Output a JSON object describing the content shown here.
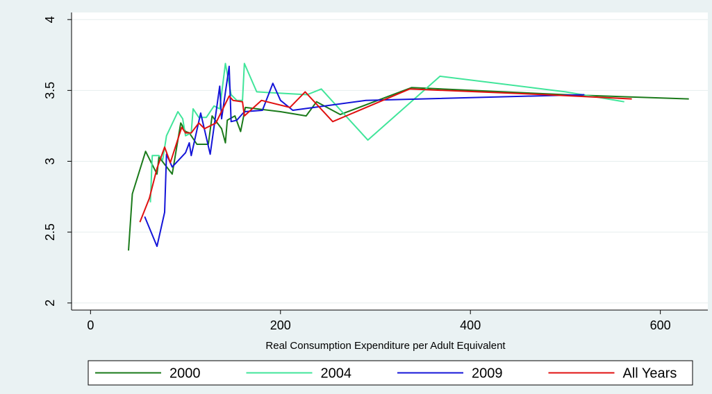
{
  "chart_data": {
    "type": "line",
    "title": "",
    "xlabel": "Real Consumption Expenditure per Adult Equivalent",
    "ylabel": "",
    "xlim": [
      -20,
      650
    ],
    "ylim": [
      1.95,
      4.05
    ],
    "x_ticks": [
      0,
      200,
      400,
      600
    ],
    "x_tick_labels": [
      "0",
      "200",
      "400",
      "600"
    ],
    "y_ticks": [
      2,
      2.5,
      3,
      3.5,
      4
    ],
    "y_tick_labels": [
      "2",
      "2.5",
      "3",
      "3.5",
      "4"
    ],
    "grid": "horizontal",
    "legend_position": "bottom",
    "series": [
      {
        "name": "2000",
        "color": "#1a7a1a",
        "points": [
          [
            40,
            2.37
          ],
          [
            44,
            2.77
          ],
          [
            58,
            3.07
          ],
          [
            70,
            2.91
          ],
          [
            72,
            3.03
          ],
          [
            86,
            2.91
          ],
          [
            95,
            3.27
          ],
          [
            100,
            3.21
          ],
          [
            104,
            3.2
          ],
          [
            112,
            3.12
          ],
          [
            124,
            3.12
          ],
          [
            128,
            3.32
          ],
          [
            138,
            3.23
          ],
          [
            142,
            3.13
          ],
          [
            144,
            3.29
          ],
          [
            152,
            3.32
          ],
          [
            158,
            3.21
          ],
          [
            163,
            3.38
          ],
          [
            175,
            3.37
          ],
          [
            200,
            3.35
          ],
          [
            227,
            3.32
          ],
          [
            238,
            3.42
          ],
          [
            263,
            3.33
          ],
          [
            338,
            3.52
          ],
          [
            500,
            3.47
          ],
          [
            630,
            3.44
          ]
        ]
      },
      {
        "name": "2004",
        "color": "#40e59a",
        "points": [
          [
            63,
            2.71
          ],
          [
            65,
            3.04
          ],
          [
            72,
            3.04
          ],
          [
            76,
            3.01
          ],
          [
            80,
            3.18
          ],
          [
            92,
            3.35
          ],
          [
            97,
            3.3
          ],
          [
            100,
            3.18
          ],
          [
            106,
            3.2
          ],
          [
            108,
            3.37
          ],
          [
            114,
            3.31
          ],
          [
            122,
            3.31
          ],
          [
            130,
            3.39
          ],
          [
            136,
            3.37
          ],
          [
            142,
            3.69
          ],
          [
            148,
            3.47
          ],
          [
            154,
            3.43
          ],
          [
            160,
            3.43
          ],
          [
            162,
            3.69
          ],
          [
            175,
            3.49
          ],
          [
            200,
            3.48
          ],
          [
            228,
            3.47
          ],
          [
            243,
            3.51
          ],
          [
            262,
            3.37
          ],
          [
            292,
            3.15
          ],
          [
            368,
            3.6
          ],
          [
            500,
            3.49
          ],
          [
            562,
            3.42
          ]
        ]
      },
      {
        "name": "2009",
        "color": "#1414d8",
        "points": [
          [
            57,
            2.61
          ],
          [
            70,
            2.4
          ],
          [
            78,
            2.64
          ],
          [
            80,
            3.05
          ],
          [
            86,
            2.96
          ],
          [
            100,
            3.06
          ],
          [
            104,
            3.13
          ],
          [
            106,
            3.04
          ],
          [
            116,
            3.34
          ],
          [
            126,
            3.05
          ],
          [
            136,
            3.53
          ],
          [
            138,
            3.3
          ],
          [
            146,
            3.67
          ],
          [
            148,
            3.28
          ],
          [
            154,
            3.29
          ],
          [
            162,
            3.35
          ],
          [
            181,
            3.36
          ],
          [
            192,
            3.55
          ],
          [
            200,
            3.43
          ],
          [
            213,
            3.36
          ],
          [
            290,
            3.43
          ],
          [
            520,
            3.47
          ]
        ]
      },
      {
        "name": "All Years",
        "color": "#e01010",
        "points": [
          [
            52,
            2.57
          ],
          [
            62,
            2.74
          ],
          [
            70,
            2.95
          ],
          [
            78,
            3.1
          ],
          [
            84,
            2.99
          ],
          [
            96,
            3.24
          ],
          [
            100,
            3.2
          ],
          [
            106,
            3.2
          ],
          [
            114,
            3.27
          ],
          [
            120,
            3.23
          ],
          [
            132,
            3.27
          ],
          [
            146,
            3.46
          ],
          [
            150,
            3.43
          ],
          [
            160,
            3.42
          ],
          [
            162,
            3.32
          ],
          [
            180,
            3.43
          ],
          [
            210,
            3.38
          ],
          [
            226,
            3.49
          ],
          [
            255,
            3.28
          ],
          [
            336,
            3.51
          ],
          [
            480,
            3.47
          ],
          [
            570,
            3.44
          ]
        ]
      }
    ]
  }
}
